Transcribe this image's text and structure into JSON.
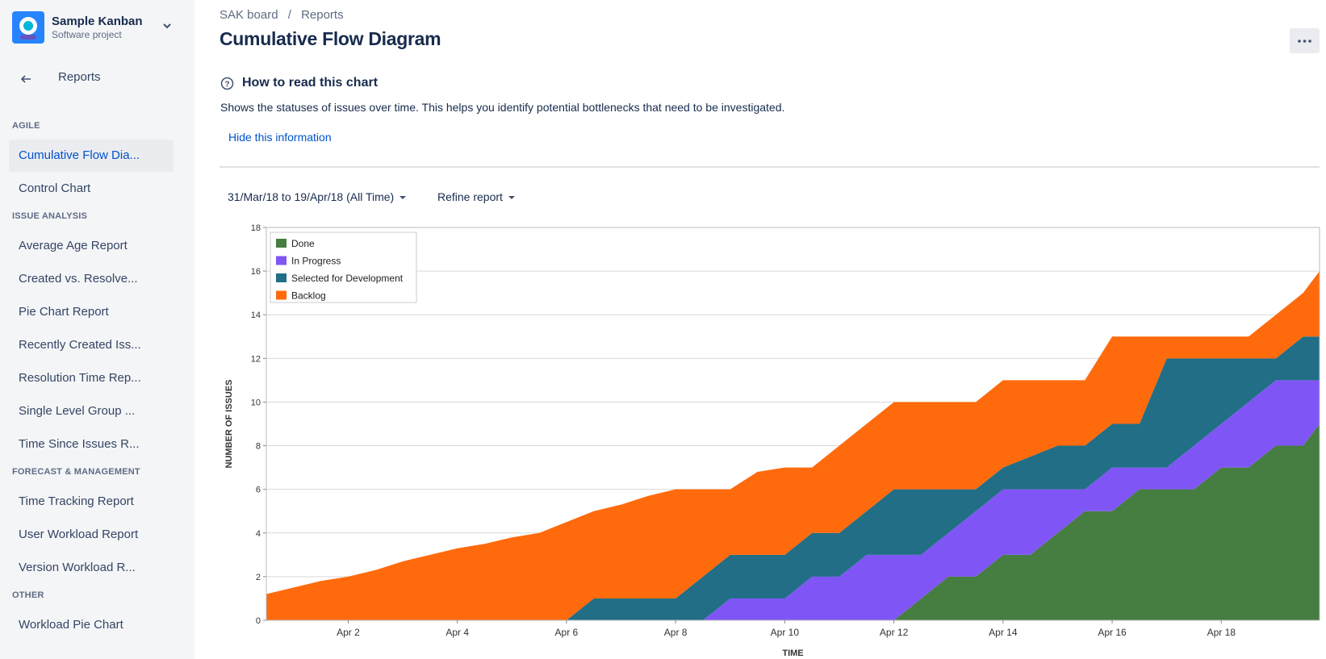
{
  "sidebar": {
    "project_name": "Sample Kanban",
    "project_type": "Software project",
    "back": "Reports",
    "active_section": 0,
    "active_item": 0,
    "sections": [
      {
        "title": "AGILE",
        "items": [
          "Cumulative Flow Dia...",
          "Control Chart"
        ]
      },
      {
        "title": "ISSUE ANALYSIS",
        "items": [
          "Average Age Report",
          "Created vs. Resolve...",
          "Pie Chart Report",
          "Recently Created Iss...",
          "Resolution Time Rep...",
          "Single Level Group ...",
          "Time Since Issues R..."
        ]
      },
      {
        "title": "FORECAST & MANAGEMENT",
        "items": [
          "Time Tracking Report",
          "User Workload Report",
          "Version Workload R..."
        ]
      },
      {
        "title": "OTHER",
        "items": [
          "Workload Pie Chart"
        ]
      }
    ]
  },
  "breadcrumbs": [
    "SAK board",
    "Reports"
  ],
  "breadcrumb_separator": "/",
  "page_title": "Cumulative Flow Diagram",
  "info": {
    "heading": "How to read this chart",
    "text": "Shows the statuses of issues over time. This helps you identify potential bottlenecks that need to be investigated.",
    "link": "Hide this information"
  },
  "controls": {
    "date_range": "31/Mar/18 to 19/Apr/18 (All Time)",
    "refine": "Refine report"
  },
  "chart_data": {
    "type": "stacked-area",
    "x_label": "TIME",
    "y_label": "NUMBER OF ISSUES",
    "x": [
      0.5,
      1,
      1.5,
      2,
      2.5,
      3,
      3.5,
      4,
      4.5,
      5,
      5.5,
      6,
      6.5,
      7,
      7.5,
      8,
      8.5,
      9,
      9.5,
      10,
      10.5,
      11,
      11.5,
      12,
      12.5,
      13,
      13.5,
      14,
      14.5,
      15,
      15.5,
      16,
      16.5,
      17,
      17.5,
      18,
      18.5,
      19,
      19.5,
      19.8
    ],
    "series": [
      {
        "name": "Done",
        "color": "#467d40",
        "values": [
          0,
          0,
          0,
          0,
          0,
          0,
          0,
          0,
          0,
          0,
          0,
          0,
          0,
          0,
          0,
          0,
          0,
          0,
          0,
          0,
          0,
          0,
          0,
          0,
          1,
          2,
          2,
          3,
          3,
          4,
          5,
          5,
          6,
          6,
          6,
          7,
          7,
          8,
          8,
          9
        ]
      },
      {
        "name": "In Progress",
        "color": "#7f56f5",
        "values": [
          0,
          0,
          0,
          0,
          0,
          0,
          0,
          0,
          0,
          0,
          0,
          0,
          0,
          0,
          0,
          0,
          0,
          1,
          1,
          1,
          2,
          2,
          3,
          3,
          2,
          2,
          3,
          3,
          3,
          2,
          1,
          2,
          1,
          1,
          2,
          2,
          3,
          3,
          3,
          2
        ]
      },
      {
        "name": "Selected for Development",
        "color": "#216e86",
        "values": [
          0,
          0,
          0,
          0,
          0,
          0,
          0,
          0,
          0,
          0,
          0,
          0,
          1,
          1,
          1,
          1,
          2,
          2,
          2,
          2,
          2,
          2,
          2,
          3,
          3,
          2,
          1,
          1,
          1.5,
          2,
          2,
          2,
          2,
          5,
          4,
          3,
          2,
          1,
          2,
          2
        ]
      },
      {
        "name": "Backlog",
        "color": "#ff6a0c",
        "values": [
          1.2,
          1.5,
          1.8,
          2,
          2.3,
          2.7,
          3,
          3.3,
          3.5,
          3.8,
          4,
          4.5,
          4,
          4.3,
          4.7,
          5,
          4,
          3,
          3.8,
          4,
          3,
          4,
          4,
          4,
          4,
          4,
          4,
          4,
          3.5,
          3,
          3,
          4,
          4,
          1,
          1,
          1,
          1,
          2,
          2,
          3
        ]
      }
    ],
    "xlim": [
      0.5,
      19.8
    ],
    "xticks": [
      {
        "value": 2,
        "label": "Apr 2"
      },
      {
        "value": 4,
        "label": "Apr 4"
      },
      {
        "value": 6,
        "label": "Apr 6"
      },
      {
        "value": 8,
        "label": "Apr 8"
      },
      {
        "value": 10,
        "label": "Apr 10"
      },
      {
        "value": 12,
        "label": "Apr 12"
      },
      {
        "value": 14,
        "label": "Apr 14"
      },
      {
        "value": 16,
        "label": "Apr 16"
      },
      {
        "value": 18,
        "label": "Apr 18"
      }
    ],
    "ylim": [
      0,
      18
    ],
    "yticks": [
      0,
      2,
      4,
      6,
      8,
      10,
      12,
      14,
      16,
      18
    ],
    "grid": true,
    "legend": "upper left"
  }
}
